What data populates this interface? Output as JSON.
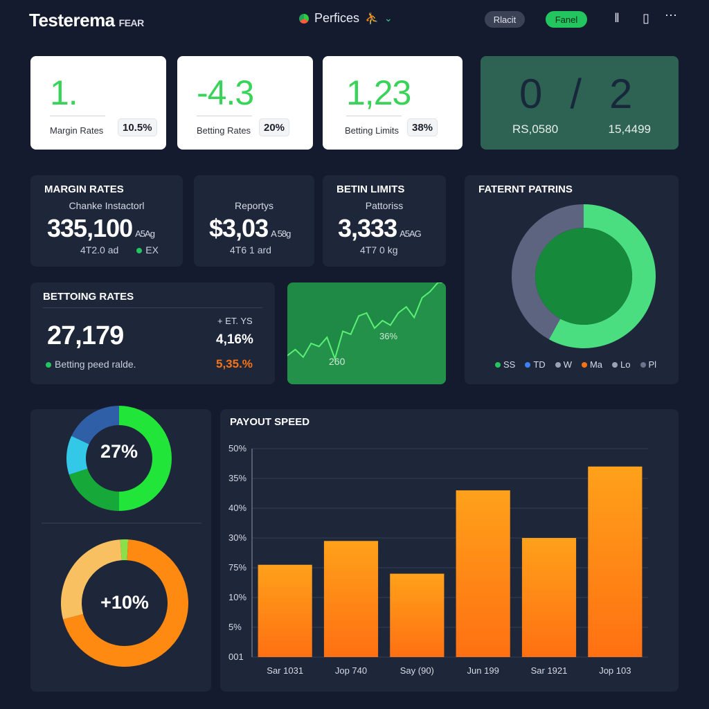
{
  "header": {
    "brand": "Testerema",
    "brand_suffix": "FEAR",
    "nav_label": "Perfices",
    "nav_extra": "⛹",
    "pill_1": "Rlacit",
    "pill_2": "Fanel"
  },
  "cards_top": [
    {
      "value": "1.",
      "label": "Margin Rates",
      "pct": "10.5%"
    },
    {
      "value": "-4.3",
      "label": "Betting Rates",
      "pct": "20%"
    },
    {
      "value": "1,23",
      "label": "Betting Limits",
      "pct": "38%"
    }
  ],
  "green_card": {
    "d1": "0",
    "d2": "/",
    "d3": "2",
    "left": "RS,0580",
    "right": "15,4499"
  },
  "kpis": [
    {
      "title": "MARGIN RATES",
      "sub": "Chanke Instactorl",
      "num": "335,100",
      "unit": "A5Ag",
      "foot": "4T2.0 ad",
      "extra": "EX"
    },
    {
      "title": "",
      "sub": "Reportys",
      "num": "$3,03",
      "unit": "A 58g",
      "foot": "4T6 1 ard"
    },
    {
      "title": "BETIN LIMITS",
      "sub": "Pattoriss",
      "num": "3,333",
      "unit": "A5AG",
      "foot": "4T7 0 kg"
    }
  ],
  "pattern": {
    "title": "FATERNT PATRINS",
    "legend": [
      "SS",
      "TD",
      "W",
      "Ma",
      "Lo",
      "Pl"
    ],
    "legend_colors": [
      "#22c55e",
      "#3b82f6",
      "#9aa3b5",
      "#f97316",
      "#9aa3b5",
      "#6b7390"
    ],
    "slices": [
      {
        "value": 58,
        "color": "#4ade80"
      },
      {
        "value": 42,
        "color": "#5c6480"
      }
    ]
  },
  "betting": {
    "title": "BETTOING RATES",
    "value": "27,179",
    "right_top": "+ ET. YS",
    "right_mid": "4,16%",
    "right_bot": "5,35.%",
    "foot": "Betting peed ralde."
  },
  "sparkline": {
    "label_a": "36%",
    "label_b": "260",
    "points": [
      10,
      14,
      9,
      18,
      16,
      22,
      8,
      26,
      24,
      36,
      38,
      28,
      33,
      30,
      38,
      42,
      35,
      48,
      52,
      58,
      58
    ]
  },
  "donut_small": {
    "label": "27%",
    "slices": [
      {
        "value": 50,
        "color": "#22e53a"
      },
      {
        "value": 20,
        "color": "#17a83a"
      },
      {
        "value": 12,
        "color": "#34c8e8"
      },
      {
        "value": 18,
        "color": "#2f5fa6"
      }
    ]
  },
  "donut_large": {
    "label": "+10%",
    "slices": [
      {
        "value": 2,
        "color": "#8be04a"
      },
      {
        "value": 70,
        "color": "#ff8a12"
      },
      {
        "value": 28,
        "color": "#f8c060"
      }
    ]
  },
  "chart_data": {
    "type": "bar",
    "title": "PAYOUT SPEED",
    "categories": [
      "Sar 1031",
      "Jop 740",
      "Say (90)",
      "Jun 199",
      "Sar 1921",
      "Jop 103"
    ],
    "y_ticks": [
      "50%",
      "35%",
      "40%",
      "30%",
      "75%",
      "10%",
      "5%",
      "001"
    ],
    "values": [
      3.1,
      3.9,
      2.8,
      5.6,
      4.0,
      6.4
    ],
    "ylim": [
      0,
      7
    ],
    "grid": true,
    "colors": {
      "top": "#ffa11a",
      "bottom": "#ff7012"
    }
  }
}
